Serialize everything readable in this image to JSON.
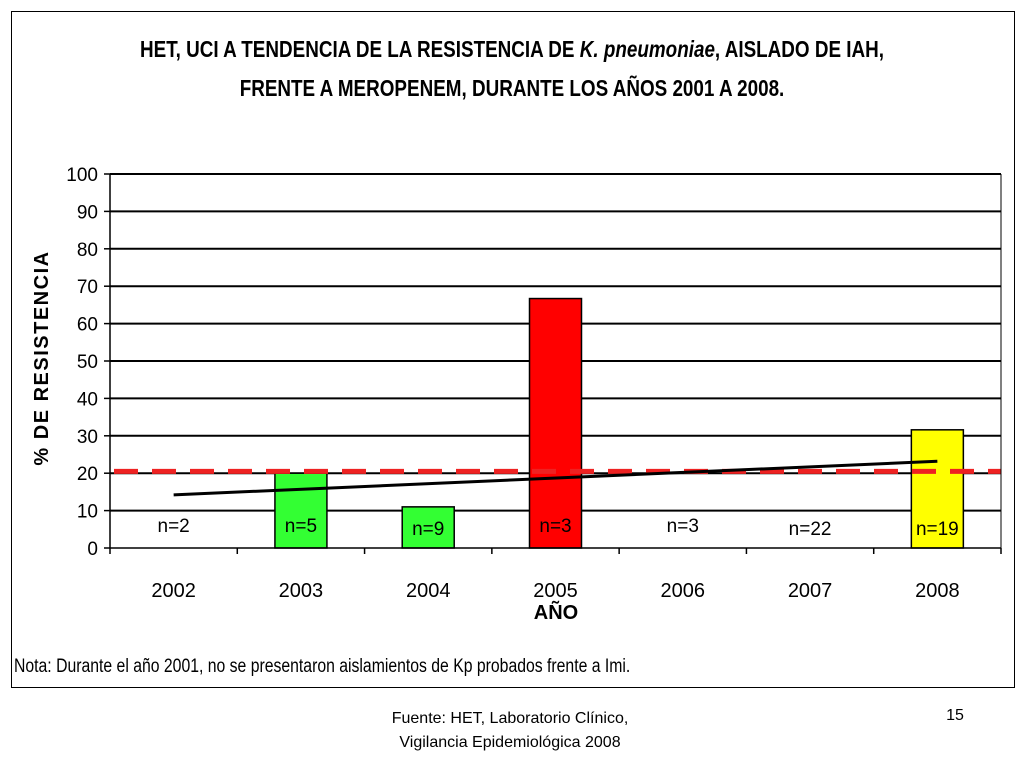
{
  "title": {
    "line1_part1": "HET, UCI A TENDENCIA DE LA RESISTENCIA DE ",
    "line1_italic": "K. pneumoniae",
    "line1_part2": ", AISLADO DE IAH,",
    "line2": "FRENTE A MEROPENEM, DURANTE LOS AÑOS 2001 A 2008."
  },
  "note": "Nota: Durante el año 2001, no se presentaron aislamientos de Kp probados frente a Imi.",
  "footer": {
    "source_line1": "Fuente: HET, Laboratorio Clínico,",
    "source_line2": "Vigilancia Epidemiológica 2008",
    "slide_number": "15"
  },
  "chart_data": {
    "type": "bar",
    "categories": [
      "2002",
      "2003",
      "2004",
      "2005",
      "2006",
      "2007",
      "2008"
    ],
    "values": [
      0,
      20,
      11,
      66.7,
      0,
      0,
      31.6
    ],
    "bar_colors": [
      "#ffffff",
      "#33ff33",
      "#33ff33",
      "#ff0000",
      "#ffffff",
      "#ffffff",
      "#ffff00"
    ],
    "data_labels": [
      "n=2",
      "n=5",
      "n=9",
      "n=3",
      "n=3",
      "n=22",
      "n=19"
    ],
    "xlabel": "AÑO",
    "ylabel": "% DE RESISTENCIA",
    "ylim": [
      0,
      100
    ],
    "yticks": [
      0,
      10,
      20,
      30,
      40,
      50,
      60,
      70,
      80,
      90,
      100
    ],
    "grid": true,
    "reference_line": {
      "value": 20.5,
      "style": "dashed",
      "color": "#ee2222"
    },
    "trendline": {
      "type": "linear",
      "start": 14.2,
      "end": 23.2,
      "color": "#000000"
    }
  }
}
